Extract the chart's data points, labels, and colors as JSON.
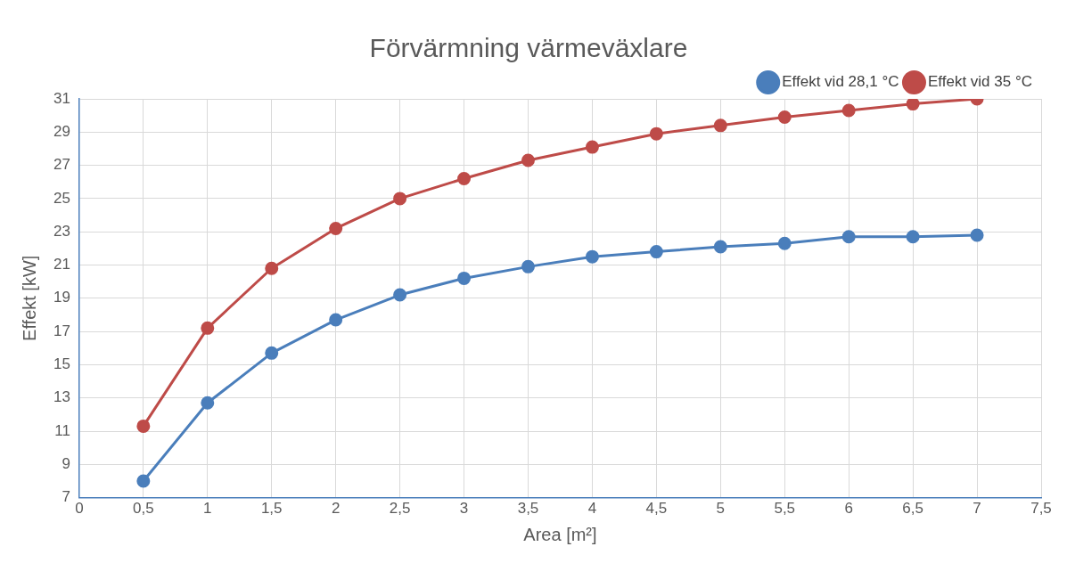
{
  "chart_data": {
    "type": "line",
    "title": "Förvärmning värmeväxlare",
    "xlabel": "Area [m²]",
    "ylabel": "Effekt [kW]",
    "x": [
      0.5,
      1,
      1.5,
      2,
      2.5,
      3,
      3.5,
      4,
      4.5,
      5,
      5.5,
      6,
      6.5,
      7
    ],
    "series": [
      {
        "name": "Effekt vid 28,1 °C",
        "color": "#4a7ebb",
        "values": [
          8.0,
          12.7,
          15.7,
          17.7,
          19.2,
          20.2,
          20.9,
          21.5,
          21.8,
          22.1,
          22.3,
          22.7,
          22.7,
          22.8
        ]
      },
      {
        "name": "Effekt vid 35 °C",
        "color": "#be4b48",
        "values": [
          11.3,
          17.2,
          20.8,
          23.2,
          25.0,
          26.2,
          27.3,
          28.1,
          28.9,
          29.4,
          29.9,
          30.3,
          30.7,
          31.0
        ]
      }
    ],
    "xlim": [
      0,
      7.5
    ],
    "ylim": [
      7,
      31
    ],
    "xticks": [
      0,
      {
        "value": 0.5,
        "label": "0,5"
      },
      1,
      {
        "value": 1.5,
        "label": "1,5"
      },
      2,
      {
        "value": 2.5,
        "label": "2,5"
      },
      3,
      {
        "value": 3.5,
        "label": "3,5"
      },
      4,
      {
        "value": 4.5,
        "label": "4,5"
      },
      5,
      {
        "value": 5.5,
        "label": "5,5"
      },
      6,
      {
        "value": 6.5,
        "label": "6,5"
      },
      7,
      {
        "value": 7.5,
        "label": "7,5"
      }
    ],
    "yticks": [
      7,
      9,
      11,
      13,
      15,
      17,
      19,
      21,
      23,
      25,
      27,
      29,
      31
    ],
    "grid": true,
    "legend": "top right",
    "marker": "circle",
    "line_style": "solid"
  }
}
